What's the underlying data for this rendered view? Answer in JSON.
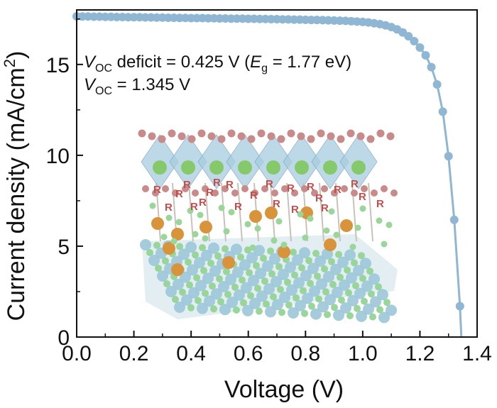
{
  "chart_data": {
    "type": "line",
    "xlabel": "Voltage (V)",
    "ylabel": "Current density (mA/cm",
    "ylabel_sup": "2",
    "ylabel_close": ")",
    "xlim": [
      0.0,
      1.4
    ],
    "ylim": [
      0,
      18
    ],
    "x_ticks": [
      "0.0",
      "0.2",
      "0.4",
      "0.6",
      "0.8",
      "1.0",
      "1.2",
      "1.4"
    ],
    "y_ticks": [
      "0",
      "5",
      "10",
      "15"
    ],
    "grid": false,
    "legend": "none",
    "colors": {
      "series": "#8fb7d3",
      "marker": "#8fb7d3",
      "axis": "#111111",
      "label_r": "#c0504d"
    },
    "annotations": {
      "line1": {
        "v": "V",
        "sub": "OC",
        "mid": " deficit = 0.425 V (",
        "e": "E",
        "esub": "g",
        "end": " = 1.77 eV)"
      },
      "line2": {
        "v": "V",
        "sub": "OC",
        "end": " = 1.345 V"
      }
    },
    "inset_labels": [
      "R",
      "R",
      "R",
      "R",
      "R",
      "R",
      "R",
      "R",
      "R",
      "R",
      "R",
      "R",
      "R",
      "R",
      "R",
      "R",
      "R",
      "R",
      "R",
      "R",
      "R",
      "R"
    ],
    "series": [
      {
        "points": [
          [
            0.0,
            17.65
          ],
          [
            0.02,
            17.64
          ],
          [
            0.04,
            17.64
          ],
          [
            0.06,
            17.63
          ],
          [
            0.08,
            17.63
          ],
          [
            0.1,
            17.62
          ],
          [
            0.12,
            17.62
          ],
          [
            0.14,
            17.61
          ],
          [
            0.16,
            17.61
          ],
          [
            0.18,
            17.6
          ],
          [
            0.2,
            17.6
          ],
          [
            0.22,
            17.6
          ],
          [
            0.24,
            17.59
          ],
          [
            0.26,
            17.59
          ],
          [
            0.28,
            17.58
          ],
          [
            0.3,
            17.58
          ],
          [
            0.32,
            17.57
          ],
          [
            0.34,
            17.57
          ],
          [
            0.36,
            17.56
          ],
          [
            0.38,
            17.56
          ],
          [
            0.4,
            17.55
          ],
          [
            0.42,
            17.55
          ],
          [
            0.44,
            17.55
          ],
          [
            0.46,
            17.54
          ],
          [
            0.48,
            17.54
          ],
          [
            0.5,
            17.53
          ],
          [
            0.52,
            17.53
          ],
          [
            0.54,
            17.52
          ],
          [
            0.56,
            17.52
          ],
          [
            0.58,
            17.52
          ],
          [
            0.6,
            17.51
          ],
          [
            0.62,
            17.51
          ],
          [
            0.64,
            17.5
          ],
          [
            0.66,
            17.5
          ],
          [
            0.68,
            17.49
          ],
          [
            0.7,
            17.49
          ],
          [
            0.72,
            17.48
          ],
          [
            0.74,
            17.48
          ],
          [
            0.76,
            17.47
          ],
          [
            0.78,
            17.47
          ],
          [
            0.8,
            17.46
          ],
          [
            0.82,
            17.45
          ],
          [
            0.84,
            17.45
          ],
          [
            0.86,
            17.44
          ],
          [
            0.88,
            17.43
          ],
          [
            0.9,
            17.42
          ],
          [
            0.92,
            17.41
          ],
          [
            0.94,
            17.4
          ],
          [
            0.96,
            17.38
          ],
          [
            0.98,
            17.36
          ],
          [
            1.0,
            17.34
          ],
          [
            1.02,
            17.31
          ],
          [
            1.04,
            17.27
          ],
          [
            1.06,
            17.22
          ],
          [
            1.08,
            17.15
          ],
          [
            1.1,
            17.06
          ],
          [
            1.12,
            16.93
          ],
          [
            1.14,
            16.76
          ],
          [
            1.16,
            16.55
          ],
          [
            1.18,
            16.28
          ],
          [
            1.2,
            15.93
          ],
          [
            1.22,
            15.5
          ],
          [
            1.24,
            14.85
          ],
          [
            1.26,
            13.9
          ],
          [
            1.28,
            12.4
          ],
          [
            1.3,
            9.95
          ],
          [
            1.32,
            6.45
          ],
          [
            1.34,
            1.7
          ],
          [
            1.345,
            0.0
          ]
        ]
      }
    ]
  }
}
